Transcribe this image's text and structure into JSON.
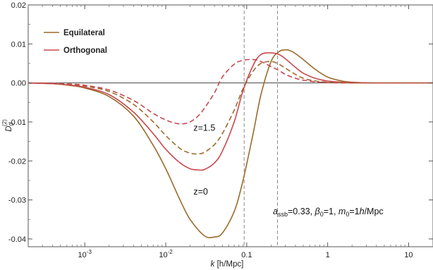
{
  "chart_data": {
    "type": "line",
    "title": "",
    "xlabel": {
      "k": "k",
      "unit": " [h/Mpc]"
    },
    "ylabel": {
      "base": "D",
      "sub": "0",
      "sup": "(2)"
    },
    "x_scale": "log",
    "xlim": [
      0.0002,
      20
    ],
    "ylim": [
      -0.042,
      0.02
    ],
    "x_ticks": [
      {
        "value": 0.001,
        "base": "10",
        "exp": "-3"
      },
      {
        "value": 0.01,
        "base": "10",
        "exp": "-2"
      },
      {
        "value": 0.1,
        "label": "0.1"
      },
      {
        "value": 1,
        "label": "1"
      },
      {
        "value": 10,
        "label": "10"
      }
    ],
    "y_ticks": [
      {
        "value": 0.02,
        "label": "0.02"
      },
      {
        "value": 0.01,
        "label": "0.01"
      },
      {
        "value": 0.0,
        "label": "0.00"
      },
      {
        "value": -0.01,
        "label": "-0.01"
      },
      {
        "value": -0.02,
        "label": "-0.02"
      },
      {
        "value": -0.03,
        "label": "-0.03"
      },
      {
        "value": -0.04,
        "label": "-0.04"
      }
    ],
    "grid": false,
    "legend_position": "top-left",
    "vlines": [
      0.093,
      0.24
    ],
    "series": [
      {
        "name": "Equilateral",
        "z": "0",
        "color": "#9B6A2C",
        "dash": "solid",
        "x": [
          0.0002,
          0.0004,
          0.0007,
          0.001,
          0.002,
          0.004,
          0.007,
          0.01,
          0.015,
          0.02,
          0.03,
          0.04,
          0.05,
          0.07,
          0.09,
          0.12,
          0.15,
          0.2,
          0.25,
          0.3,
          0.35,
          0.4,
          0.5,
          0.7,
          1.0,
          1.5,
          2,
          3,
          5,
          10,
          20
        ],
        "y": [
          0,
          -0.0002,
          -0.0007,
          -0.0013,
          -0.0035,
          -0.0085,
          -0.016,
          -0.022,
          -0.03,
          -0.035,
          -0.0392,
          -0.0395,
          -0.0385,
          -0.033,
          -0.025,
          -0.013,
          -0.003,
          0.0055,
          0.008,
          0.0085,
          0.0082,
          0.0075,
          0.006,
          0.0035,
          0.0015,
          0.0005,
          0.0002,
          5e-05,
          0,
          0,
          0
        ]
      },
      {
        "name": "Orthogonal",
        "z": "0",
        "color": "#C8484E",
        "dash": "solid",
        "x": [
          0.0002,
          0.0004,
          0.0007,
          0.001,
          0.002,
          0.004,
          0.007,
          0.01,
          0.015,
          0.02,
          0.025,
          0.03,
          0.04,
          0.05,
          0.07,
          0.09,
          0.12,
          0.15,
          0.2,
          0.25,
          0.3,
          0.4,
          0.5,
          0.7,
          1.0,
          1.5,
          2,
          3,
          5,
          10,
          20
        ],
        "y": [
          0,
          -0.0002,
          -0.0006,
          -0.0011,
          -0.003,
          -0.0075,
          -0.013,
          -0.017,
          -0.0205,
          -0.022,
          -0.0223,
          -0.0222,
          -0.0205,
          -0.0175,
          -0.01,
          -0.002,
          0.0045,
          0.0073,
          0.0077,
          0.0073,
          0.0062,
          0.004,
          0.0025,
          0.0012,
          0.0005,
          0.0002,
          0.0001,
          0,
          0,
          0,
          0
        ]
      },
      {
        "name": "",
        "z": "1.5",
        "color": "#9B6A2C",
        "dash": "dashed",
        "x": [
          0.0002,
          0.0004,
          0.0007,
          0.001,
          0.002,
          0.004,
          0.007,
          0.01,
          0.015,
          0.02,
          0.025,
          0.03,
          0.04,
          0.05,
          0.07,
          0.09,
          0.12,
          0.15,
          0.2,
          0.25,
          0.3,
          0.4,
          0.5,
          0.7,
          1.0,
          1.5,
          2,
          3,
          5,
          10,
          20
        ],
        "y": [
          0,
          -0.0001,
          -0.0004,
          -0.0008,
          -0.0022,
          -0.0055,
          -0.01,
          -0.0135,
          -0.0168,
          -0.018,
          -0.0182,
          -0.0178,
          -0.0158,
          -0.013,
          -0.007,
          -0.0015,
          0.003,
          0.005,
          0.0055,
          0.0048,
          0.0038,
          0.0022,
          0.0012,
          0.0005,
          0.0002,
          0.0001,
          0,
          0,
          0,
          0,
          0
        ]
      },
      {
        "name": "",
        "z": "1.5",
        "color": "#C8484E",
        "dash": "dashed",
        "x": [
          0.0002,
          0.0004,
          0.0007,
          0.001,
          0.002,
          0.004,
          0.007,
          0.01,
          0.013,
          0.016,
          0.02,
          0.025,
          0.03,
          0.04,
          0.05,
          0.07,
          0.09,
          0.12,
          0.15,
          0.2,
          0.25,
          0.3,
          0.4,
          0.5,
          0.7,
          1.0,
          1.5,
          2,
          3,
          5,
          10,
          20
        ],
        "y": [
          0,
          -0.0001,
          -0.0003,
          -0.0006,
          -0.0018,
          -0.0045,
          -0.0078,
          -0.0095,
          -0.0103,
          -0.0105,
          -0.01,
          -0.0085,
          -0.0065,
          -0.0025,
          0.0015,
          0.0048,
          0.0058,
          0.006,
          0.0055,
          0.0042,
          0.0032,
          0.0022,
          0.0012,
          0.0007,
          0.0003,
          0.0001,
          0,
          0,
          0,
          0,
          0,
          0
        ]
      }
    ],
    "annotations": [
      {
        "text": "z=1.5",
        "x": 0.022,
        "y": -0.0123
      },
      {
        "text": "z=0",
        "x": 0.022,
        "y": -0.0286
      }
    ],
    "param_text": {
      "a": "a",
      "a_sub": "ssb",
      "a_val": "=0.33, ",
      "beta": "β",
      "beta_sub": "0",
      "beta_val": "=1, ",
      "m": "m",
      "m_sub": "0",
      "m_val": "=1",
      "h": "h",
      "unit": "/Mpc"
    }
  }
}
